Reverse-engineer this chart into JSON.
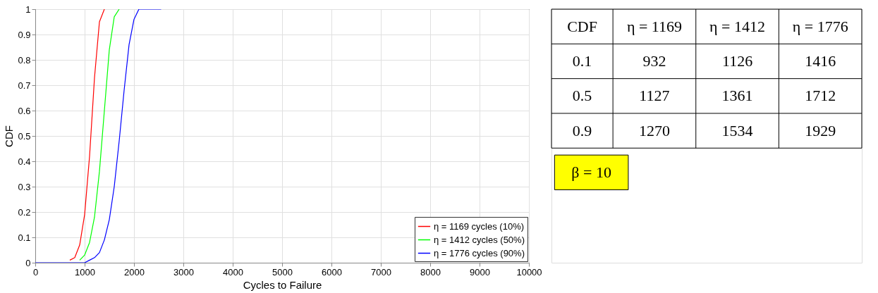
{
  "chart_data": {
    "type": "line",
    "xlabel": "Cycles to Failure",
    "ylabel": "CDF",
    "xlim": [
      0,
      10000
    ],
    "xticks": [
      0,
      1000,
      2000,
      3000,
      4000,
      5000,
      6000,
      7000,
      8000,
      9000,
      10000
    ],
    "ylim": [
      0,
      1
    ],
    "yticks": [
      0,
      0.1,
      0.2,
      0.3,
      0.4,
      0.5,
      0.6,
      0.7,
      0.8,
      0.9,
      1
    ],
    "grid": true,
    "legend": "bottom right",
    "marker": "none",
    "line_style": "solid",
    "series": [
      {
        "name": "η = 1169 cycles (10%)",
        "color": "#ff0000",
        "x": [
          700,
          800,
          900,
          1000,
          1100,
          1200,
          1300,
          1400
        ],
        "values": [
          0.01,
          0.02,
          0.07,
          0.19,
          0.42,
          0.73,
          0.95,
          1.0
        ]
      },
      {
        "name": "η = 1412 cycles (50%)",
        "color": "#00ff00",
        "x": [
          900,
          1000,
          1100,
          1200,
          1300,
          1400,
          1500,
          1600,
          1700
        ],
        "values": [
          0.01,
          0.03,
          0.08,
          0.18,
          0.36,
          0.6,
          0.84,
          0.97,
          1.0
        ]
      },
      {
        "name": "η = 1776 cycles (90%)",
        "color": "#0000ff",
        "x": [
          0,
          900,
          1000,
          1100,
          1200,
          1300,
          1400,
          1500,
          1600,
          1700,
          1800,
          1900,
          2000,
          2100,
          2200,
          2550
        ],
        "values": [
          0,
          0,
          0.0,
          0.01,
          0.02,
          0.04,
          0.09,
          0.17,
          0.3,
          0.48,
          0.68,
          0.86,
          0.96,
          1.0,
          1.0,
          1.0
        ]
      }
    ],
    "annotations": [
      "CDF",
      "η = 1169",
      "η = 1412",
      "η = 1776",
      "0.1",
      "932",
      "1126",
      "1416",
      "0.5",
      "1127",
      "1361",
      "1712",
      "0.9",
      "1270",
      "1534",
      "1929",
      "β = 10"
    ]
  }
}
